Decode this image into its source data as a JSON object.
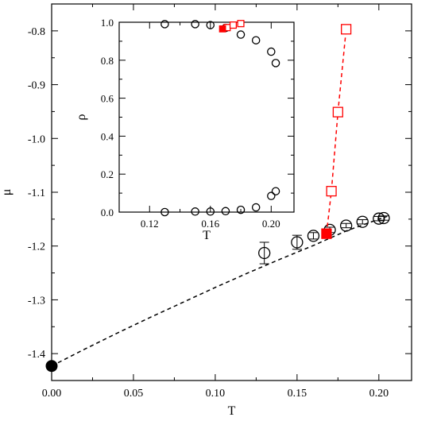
{
  "chart_data": [
    {
      "type": "scatter",
      "role": "main",
      "xlabel": "T",
      "ylabel": "μ",
      "xlim": [
        0.0,
        0.22
      ],
      "ylim": [
        -1.45,
        -0.75
      ],
      "xticks": [
        0.0,
        0.05,
        0.1,
        0.15,
        0.2
      ],
      "xtick_labels": [
        "0.00",
        "0.05",
        "0.10",
        "0.15",
        "0.20"
      ],
      "yticks": [
        -1.4,
        -1.3,
        -1.2,
        -1.1,
        -1.0,
        -0.9,
        -0.8
      ],
      "ytick_labels": [
        "-1.4",
        "-1.3",
        "-1.2",
        "-1.1",
        "-1.0",
        "-0.9",
        "-0.8"
      ],
      "grid": false,
      "series": [
        {
          "marker": "open-circle",
          "color": "#000000",
          "x": [
            0.13,
            0.15,
            0.16,
            0.17,
            0.18,
            0.19,
            0.2,
            0.203
          ],
          "y": [
            -1.213,
            -1.193,
            -1.181,
            -1.17,
            -1.162,
            -1.155,
            -1.149,
            -1.148
          ],
          "yerr": [
            0.02,
            0.013,
            0.006,
            0.005,
            0.004,
            0.004,
            0.004,
            0.004
          ]
        },
        {
          "marker": "dashed-line",
          "color": "#000000",
          "x": [
            0.0,
            0.02,
            0.04,
            0.06,
            0.08,
            0.1,
            0.12,
            0.14,
            0.16,
            0.18,
            0.2,
            0.205
          ],
          "y": [
            -1.423,
            -1.392,
            -1.362,
            -1.333,
            -1.305,
            -1.277,
            -1.25,
            -1.224,
            -1.199,
            -1.172,
            -1.15,
            -1.145
          ]
        },
        {
          "marker": "filled-circle",
          "color": "#000000",
          "x": [
            0.0
          ],
          "y": [
            -1.423
          ]
        },
        {
          "marker": "open-square-dashed",
          "color": "#ff0000",
          "x": [
            0.168,
            0.171,
            0.175,
            0.18
          ],
          "y": [
            -1.177,
            -1.098,
            -0.951,
            -0.797
          ]
        },
        {
          "marker": "filled-square",
          "color": "#ff0000",
          "x": [
            0.168
          ],
          "y": [
            -1.177
          ]
        }
      ]
    },
    {
      "type": "scatter",
      "role": "inset",
      "xlabel": "T",
      "ylabel": "ρ",
      "xlim": [
        0.1,
        0.215
      ],
      "ylim": [
        0.0,
        1.0
      ],
      "xticks": [
        0.12,
        0.16,
        0.2
      ],
      "xtick_labels": [
        "0.12",
        "0.16",
        "0.20"
      ],
      "yticks": [
        0.0,
        0.2,
        0.4,
        0.6,
        0.8,
        1.0
      ],
      "ytick_labels": [
        "0.0",
        "0.2",
        "0.4",
        "0.6",
        "0.8",
        "1.0"
      ],
      "grid": false,
      "series": [
        {
          "marker": "open-circle",
          "color": "#000000",
          "x": [
            0.13,
            0.15,
            0.16,
            0.17,
            0.18,
            0.19,
            0.2,
            0.203
          ],
          "y": [
            0.99,
            0.99,
            0.985,
            0.97,
            0.935,
            0.905,
            0.845,
            0.785
          ]
        },
        {
          "marker": "open-circle",
          "color": "#000000",
          "x": [
            0.13,
            0.15,
            0.16,
            0.17,
            0.18,
            0.19,
            0.2,
            0.203
          ],
          "y": [
            0.0,
            0.003,
            0.003,
            0.005,
            0.012,
            0.025,
            0.085,
            0.11
          ]
        },
        {
          "marker": "open-square",
          "color": "#ff0000",
          "x": [
            0.171,
            0.175,
            0.18
          ],
          "y": [
            0.972,
            0.985,
            0.993
          ]
        },
        {
          "marker": "filled-square",
          "color": "#ff0000",
          "x": [
            0.168
          ],
          "y": [
            0.965
          ]
        }
      ]
    }
  ]
}
